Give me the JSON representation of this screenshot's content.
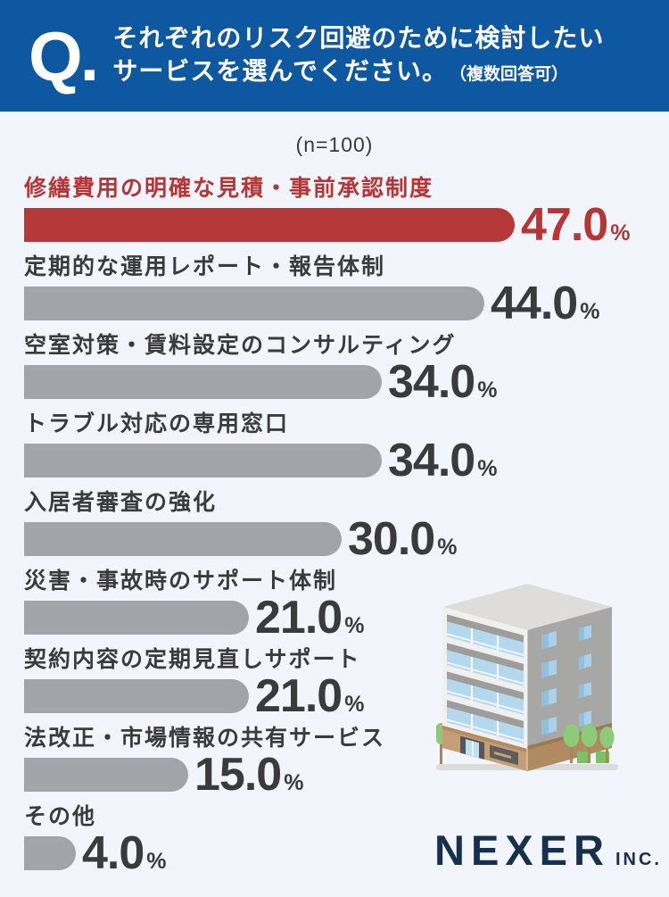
{
  "header": {
    "q_mark": "Q.",
    "line1": "それぞれのリスク回避のために検討したい",
    "line2": "サービスを選んでください。",
    "note": "（複数回答可）"
  },
  "chart_data": {
    "type": "bar",
    "orientation": "horizontal",
    "sample_size": "(n=100)",
    "categories": [
      "修繕費用の明確な見積・事前承認制度",
      "定期的な運用レポート・報告体制",
      "空室対策・賃料設定のコンサルティング",
      "トラブル対応の専用窓口",
      "入居者審査の強化",
      "災害・事故時のサポート体制",
      "契約内容の定期見直しサポート",
      "法改正・市場情報の共有サービス",
      "その他"
    ],
    "values": [
      47.0,
      44.0,
      34.0,
      34.0,
      30.0,
      21.0,
      21.0,
      15.0,
      4.0
    ],
    "value_suffix": "%",
    "highlight_index": 0,
    "colors": {
      "highlight_bar": "#b73838",
      "highlight_text": "#b73535",
      "default_bar": "#a2a4a9",
      "default_text": "#3b3b3e"
    },
    "xlim": [
      0,
      50
    ],
    "grid": false,
    "legend": false
  },
  "footer": {
    "brand": "NEXER",
    "brand_suffix": "INC."
  },
  "illustration": "office-building"
}
